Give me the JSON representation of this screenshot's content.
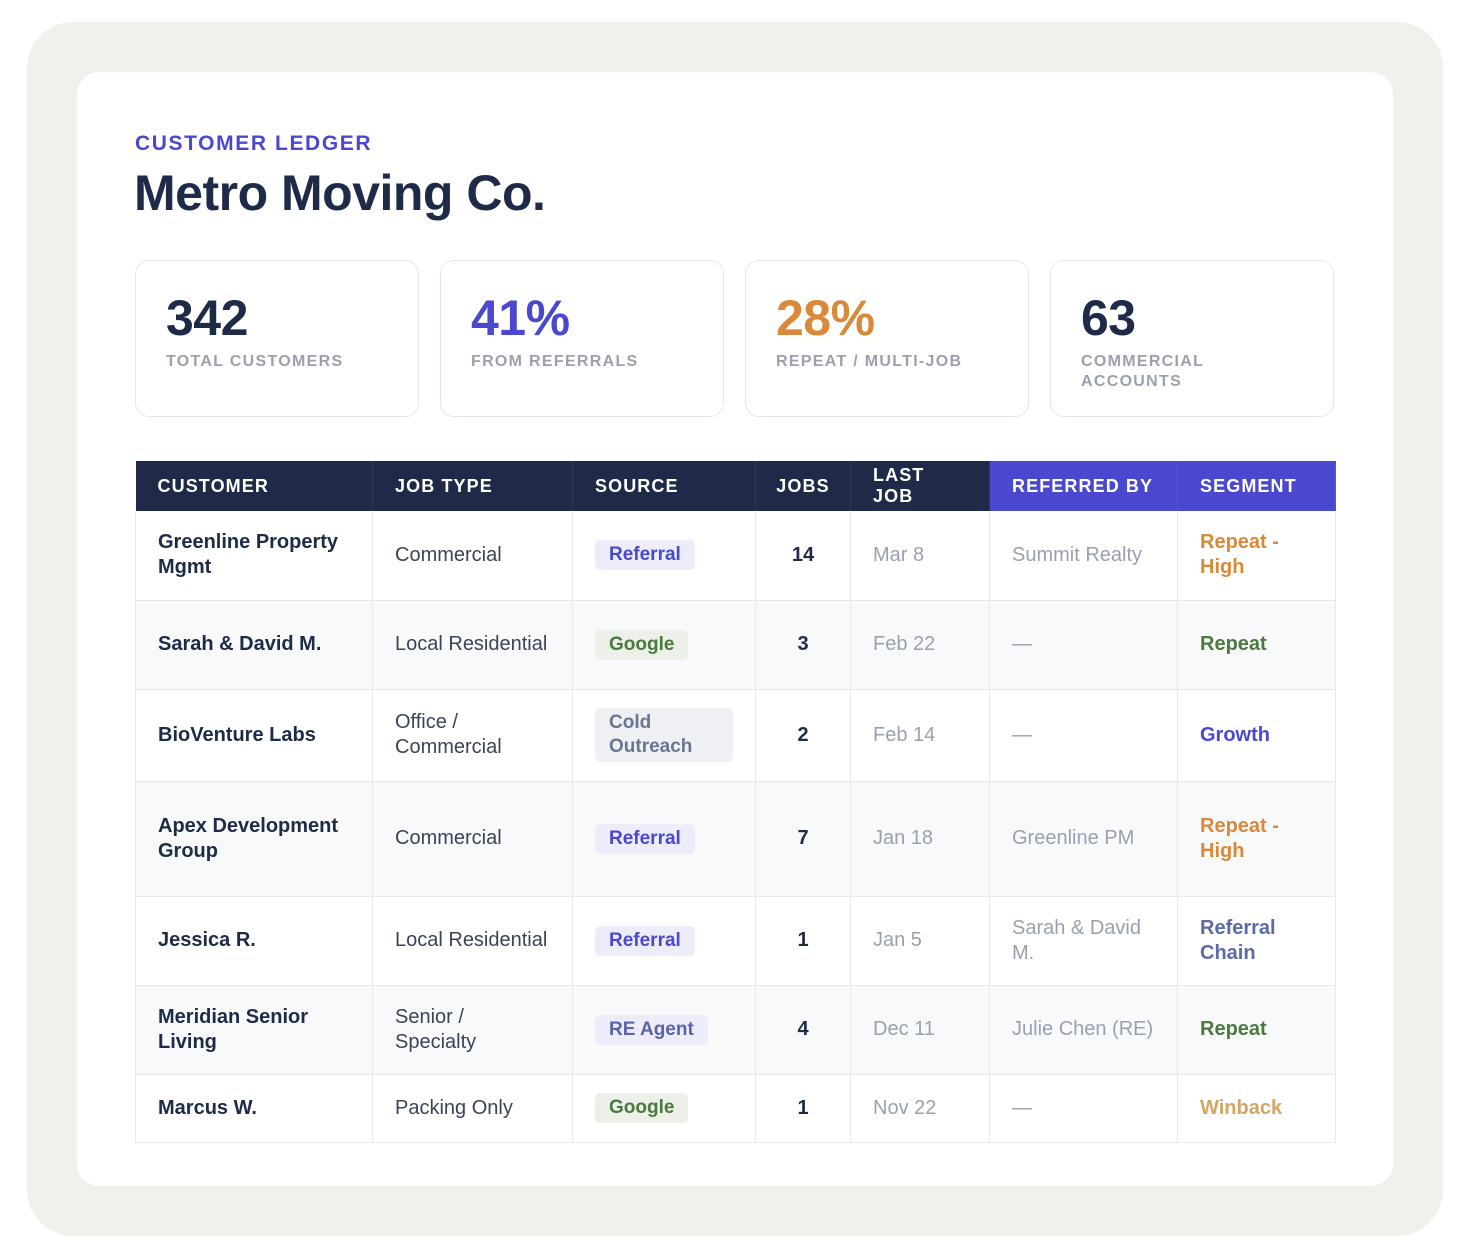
{
  "header": {
    "eyebrow": "CUSTOMER LEDGER",
    "title": "Metro Moving Co."
  },
  "stats": [
    {
      "value": "342",
      "label": "TOTAL CUSTOMERS",
      "color": "#1e2a47"
    },
    {
      "value": "41%",
      "label": "FROM REFERRALS",
      "color": "#4a48cf"
    },
    {
      "value": "28%",
      "label": "REPEAT / MULTI-JOB",
      "color": "#d88a3a"
    },
    {
      "value": "63",
      "label": "COMMERCIAL ACCOUNTS",
      "color": "#1e2a47"
    }
  ],
  "table": {
    "columns": [
      "CUSTOMER",
      "JOB TYPE",
      "SOURCE",
      "JOBS",
      "LAST JOB",
      "REFERRED BY",
      "SEGMENT"
    ],
    "rows": [
      {
        "customer": "Greenline Property Mgmt",
        "job_type": "Commercial",
        "source": "Referral",
        "jobs": "14",
        "last_job": "Mar 8",
        "referred_by": "Summit Realty",
        "segment": "Repeat - High"
      },
      {
        "customer": "Sarah & David M.",
        "job_type": "Local Residential",
        "source": "Google",
        "jobs": "3",
        "last_job": "Feb 22",
        "referred_by": "—",
        "segment": "Repeat"
      },
      {
        "customer": "BioVenture Labs",
        "job_type": "Office / Commercial",
        "source": "Cold Outreach",
        "jobs": "2",
        "last_job": "Feb 14",
        "referred_by": "—",
        "segment": "Growth"
      },
      {
        "customer": "Apex Development Group",
        "job_type": "Commercial",
        "source": "Referral",
        "jobs": "7",
        "last_job": "Jan 18",
        "referred_by": "Greenline PM",
        "segment": "Repeat - High"
      },
      {
        "customer": "Jessica R.",
        "job_type": "Local Residential",
        "source": "Referral",
        "jobs": "1",
        "last_job": "Jan 5",
        "referred_by": "Sarah & David M.",
        "segment": "Referral Chain"
      },
      {
        "customer": "Meridian Senior Living",
        "job_type": "Senior / Specialty",
        "source": "RE Agent",
        "jobs": "4",
        "last_job": "Dec 11",
        "referred_by": "Julie Chen (RE)",
        "segment": "Repeat"
      },
      {
        "customer": "Marcus W.",
        "job_type": "Packing Only",
        "source": "Google",
        "jobs": "1",
        "last_job": "Nov 22",
        "referred_by": "—",
        "segment": "Winback"
      }
    ]
  },
  "colors": {
    "navy": "#1e2a47",
    "indigo": "#4a48cf",
    "orange": "#d88a3a",
    "green": "#4b7a3e",
    "slate_blue": "#5c6aa8",
    "tan": "#d2a664"
  }
}
